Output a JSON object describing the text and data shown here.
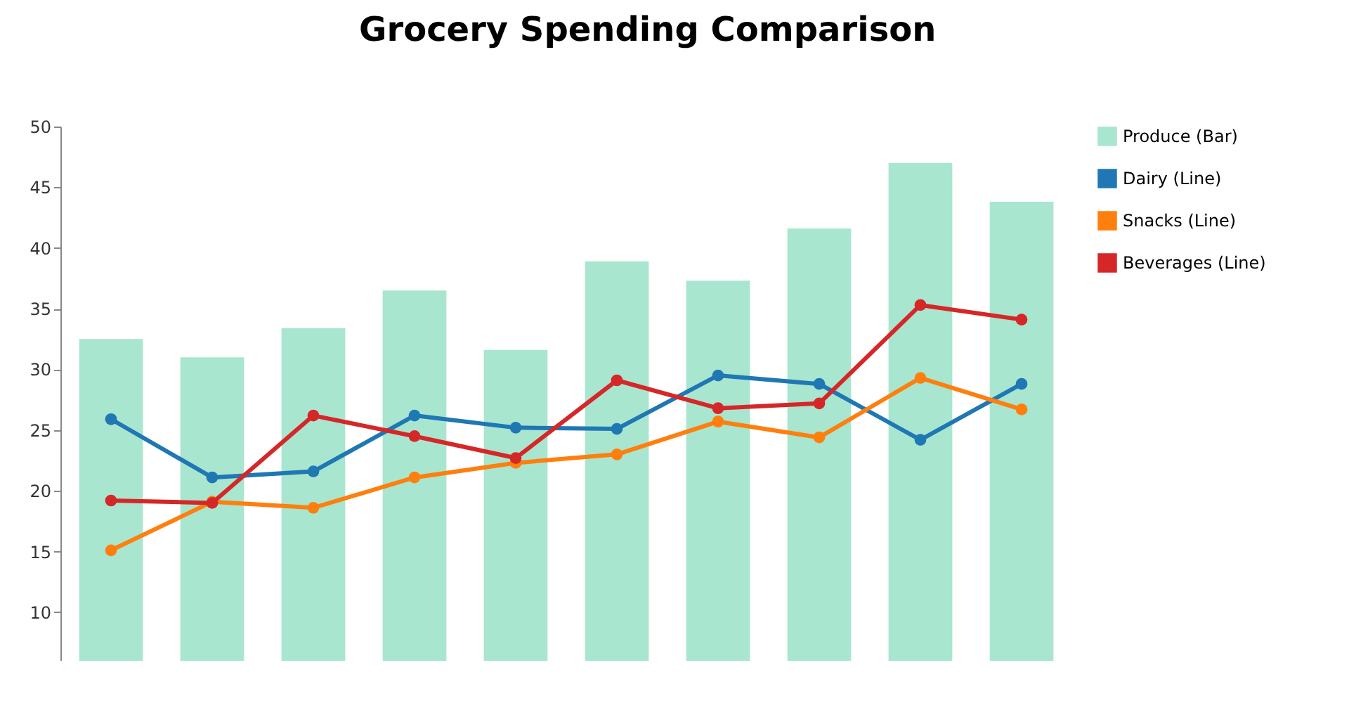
{
  "chart_data": {
    "type": "bar",
    "title": "Grocery Spending Comparison",
    "categories": [
      null,
      null,
      null,
      null,
      null,
      null,
      null,
      null,
      null,
      null
    ],
    "series": [
      {
        "name": "Produce (Bar)",
        "color": "#a8e6cf",
        "values": [
          32.5,
          31.0,
          33.4,
          36.5,
          31.6,
          38.9,
          37.3,
          41.6,
          47.0,
          43.8
        ]
      },
      {
        "name": "Dairy (Line)",
        "type": "line",
        "color": "#1f77b4",
        "values": [
          25.9,
          21.1,
          21.6,
          26.2,
          25.2,
          25.1,
          29.5,
          28.8,
          24.2,
          28.8
        ]
      },
      {
        "name": "Snacks (Line)",
        "type": "line",
        "color": "#ff7f0e",
        "values": [
          15.1,
          19.1,
          18.6,
          21.1,
          22.3,
          23.0,
          25.7,
          24.4,
          29.3,
          26.7
        ]
      },
      {
        "name": "Beverages (Line)",
        "type": "line",
        "color": "#d62728",
        "values": [
          19.2,
          19.0,
          26.2,
          24.5,
          22.7,
          29.1,
          26.8,
          27.2,
          35.3,
          34.1
        ]
      }
    ],
    "ylim": [
      6,
      50
    ],
    "yticks": [
      10,
      15,
      20,
      25,
      30,
      35,
      40,
      45,
      50
    ],
    "legend": "top right",
    "marker": "circle",
    "grid": false
  }
}
